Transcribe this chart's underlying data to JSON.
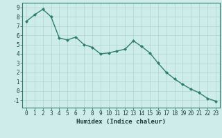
{
  "x": [
    0,
    1,
    2,
    3,
    4,
    5,
    6,
    7,
    8,
    9,
    10,
    11,
    12,
    13,
    14,
    15,
    16,
    17,
    18,
    19,
    20,
    21,
    22,
    23
  ],
  "y": [
    7.5,
    8.2,
    8.8,
    8.0,
    5.7,
    5.5,
    5.8,
    5.0,
    4.7,
    4.0,
    4.1,
    4.3,
    4.5,
    5.4,
    4.8,
    4.1,
    3.0,
    2.0,
    1.3,
    0.7,
    0.2,
    -0.2,
    -0.8,
    -1.1
  ],
  "line_color": "#2e7d6e",
  "marker": "D",
  "marker_size": 2.0,
  "bg_color": "#ceecea",
  "grid_color": "#aed4d0",
  "xlabel": "Humidex (Indice chaleur)",
  "ylim": [
    -1.8,
    9.5
  ],
  "xlim": [
    -0.5,
    23.5
  ],
  "yticks": [
    -1,
    0,
    1,
    2,
    3,
    4,
    5,
    6,
    7,
    8,
    9
  ],
  "xticks": [
    0,
    1,
    2,
    3,
    4,
    5,
    6,
    7,
    8,
    9,
    10,
    11,
    12,
    13,
    14,
    15,
    16,
    17,
    18,
    19,
    20,
    21,
    22,
    23
  ],
  "xlabel_fontsize": 6.5,
  "tick_fontsize": 5.5,
  "line_width": 1.0,
  "tick_color": "#2e7d6e",
  "label_color": "#1a3a30"
}
